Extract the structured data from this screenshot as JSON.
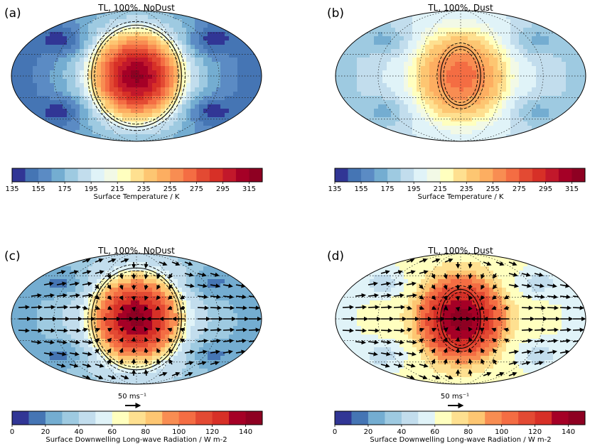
{
  "chart_data": [
    {
      "type": "heatmap",
      "panel_label": "(a)",
      "title": "TL, 100%, NoDust",
      "variable": "temperature",
      "colorbar": {
        "label": "Surface Temperature / K",
        "ticks": [
          "135",
          "155",
          "175",
          "195",
          "215",
          "235",
          "255",
          "275",
          "295",
          "315"
        ],
        "range": [
          135,
          325
        ],
        "levels": 19
      },
      "field": {
        "substellar_max": 318,
        "nightside_min": 148,
        "terminator_ring": 205,
        "cold_traps": 140
      },
      "contours": [
        "solid",
        "dashed"
      ],
      "has_wind_vectors": false
    },
    {
      "type": "heatmap",
      "panel_label": "(b)",
      "title": "TL, 100%, Dust",
      "variable": "temperature",
      "colorbar": {
        "label": "Surface Temperature / K",
        "ticks": [
          "135",
          "155",
          "175",
          "195",
          "215",
          "235",
          "255",
          "275",
          "295",
          "315"
        ],
        "range": [
          135,
          325
        ],
        "levels": 19
      },
      "field": {
        "substellar_max": 272,
        "nightside_min": 182,
        "terminator_ring": 214,
        "cold_traps": 172
      },
      "contours": [
        "solid",
        "dashed"
      ],
      "has_wind_vectors": false
    },
    {
      "type": "heatmap",
      "panel_label": "(c)",
      "title": "TL, 100%, NoDust",
      "variable": "radiation",
      "colorbar": {
        "label": "Surface Downwelling Long-wave Radiation / W m-2",
        "ticks": [
          "0",
          "20",
          "40",
          "60",
          "80",
          "100",
          "120",
          "140"
        ],
        "range": [
          0,
          150
        ],
        "levels": 15
      },
      "field": {
        "substellar_max": 145,
        "nightside_min": 25,
        "terminator_ring": 58,
        "cold_traps": 18
      },
      "contours": [
        "solid",
        "dashed"
      ],
      "has_wind_vectors": true,
      "wind_key": {
        "label": "50 ms⁻¹",
        "speed_ms": 50
      }
    },
    {
      "type": "heatmap",
      "panel_label": "(d)",
      "title": "TL, 100%, Dust",
      "variable": "radiation",
      "colorbar": {
        "label": "Surface Downwelling Long-wave Radiation / W m-2",
        "ticks": [
          "0",
          "20",
          "40",
          "60",
          "80",
          "100",
          "120",
          "140"
        ],
        "range": [
          0,
          150
        ],
        "levels": 15
      },
      "field": {
        "substellar_max": 146,
        "nightside_min": 58,
        "terminator_ring": 75,
        "cold_traps": 45
      },
      "contours": [
        "solid",
        "dashed"
      ],
      "has_wind_vectors": true,
      "wind_key": {
        "label": "50 ms⁻¹",
        "speed_ms": 50
      }
    }
  ],
  "colors": {
    "palette": [
      "#313695",
      "#4575b4",
      "#5b8bc4",
      "#74add1",
      "#9ecae1",
      "#c2dded",
      "#e0f3f8",
      "#f2f9e6",
      "#ffffbf",
      "#fee090",
      "#fdc672",
      "#fdae61",
      "#f88d52",
      "#f46d43",
      "#e34a33",
      "#d73027",
      "#c2182b",
      "#a50026",
      "#8e0022"
    ],
    "outline": "#000000"
  }
}
